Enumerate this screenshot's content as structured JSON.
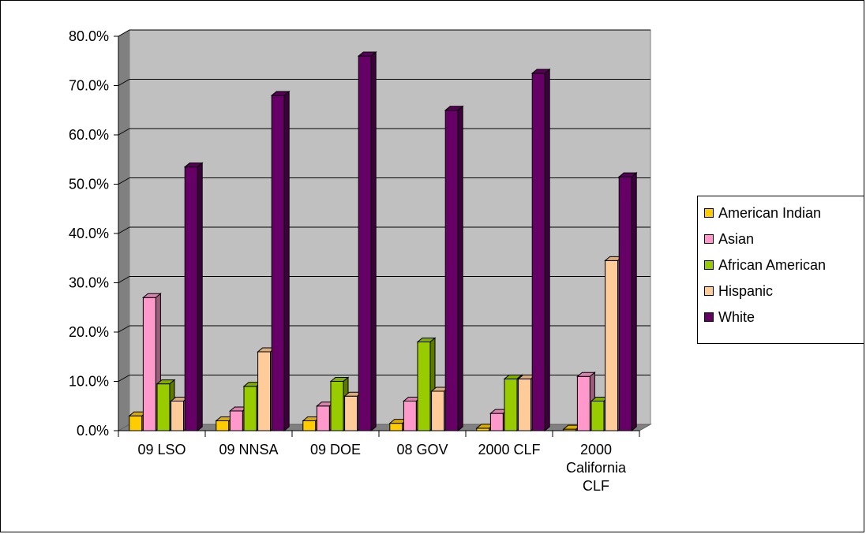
{
  "chart_data": {
    "type": "bar",
    "categories": [
      [
        "09 LSO"
      ],
      [
        "09 NNSA"
      ],
      [
        "09 DOE"
      ],
      [
        "08 GOV"
      ],
      [
        "2000 CLF"
      ],
      [
        "2000",
        "California",
        "CLF"
      ]
    ],
    "series": [
      {
        "name": "American Indian",
        "color": "#ffcc00",
        "values": [
          3.0,
          2.0,
          2.0,
          1.5,
          0.5,
          0.3
        ]
      },
      {
        "name": "Asian",
        "color": "#ff99cc",
        "values": [
          27.0,
          4.0,
          5.0,
          6.0,
          3.5,
          11.0
        ]
      },
      {
        "name": "African American",
        "color": "#99cc00",
        "values": [
          9.5,
          9.0,
          10.0,
          18.0,
          10.5,
          6.0
        ]
      },
      {
        "name": "Hispanic",
        "color": "#ffcc99",
        "values": [
          6.0,
          16.0,
          7.0,
          8.0,
          10.5,
          34.5
        ]
      },
      {
        "name": "White",
        "color": "#660066",
        "values": [
          53.5,
          68.0,
          76.0,
          65.0,
          72.5,
          51.5
        ]
      }
    ],
    "yticks": [
      "0.0%",
      "10.0%",
      "20.0%",
      "30.0%",
      "40.0%",
      "50.0%",
      "60.0%",
      "70.0%",
      "80.0%"
    ],
    "ylim": [
      0,
      80
    ],
    "grid": true,
    "legend_position": "right"
  }
}
